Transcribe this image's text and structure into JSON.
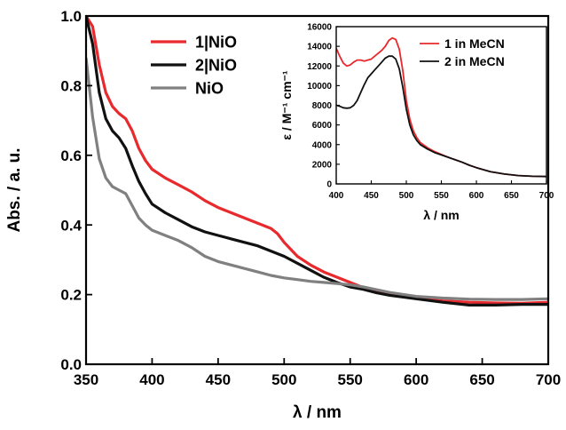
{
  "chart_data": [
    {
      "type": "line",
      "xlabel": "λ / nm",
      "ylabel": "Abs. / a. u.",
      "xlim": [
        350,
        700
      ],
      "ylim": [
        0.0,
        1.0
      ],
      "xticks": [
        350,
        400,
        450,
        500,
        550,
        600,
        650,
        700
      ],
      "yticks": [
        "0.0",
        "0.2",
        "0.4",
        "0.6",
        "0.8",
        "1.0"
      ],
      "legend_position": "top-center",
      "grid": false,
      "series": [
        {
          "name": "1|NiO",
          "color": "#e8292d",
          "points": [
            [
              350,
              1.0
            ],
            [
              355,
              0.97
            ],
            [
              360,
              0.86
            ],
            [
              365,
              0.78
            ],
            [
              370,
              0.74
            ],
            [
              375,
              0.72
            ],
            [
              380,
              0.705
            ],
            [
              385,
              0.67
            ],
            [
              390,
              0.62
            ],
            [
              395,
              0.585
            ],
            [
              400,
              0.56
            ],
            [
              410,
              0.535
            ],
            [
              420,
              0.515
            ],
            [
              430,
              0.495
            ],
            [
              440,
              0.47
            ],
            [
              450,
              0.45
            ],
            [
              460,
              0.435
            ],
            [
              470,
              0.42
            ],
            [
              480,
              0.405
            ],
            [
              490,
              0.39
            ],
            [
              495,
              0.375
            ],
            [
              500,
              0.35
            ],
            [
              510,
              0.31
            ],
            [
              520,
              0.285
            ],
            [
              530,
              0.265
            ],
            [
              540,
              0.25
            ],
            [
              550,
              0.235
            ],
            [
              560,
              0.22
            ],
            [
              570,
              0.208
            ],
            [
              580,
              0.2
            ],
            [
              600,
              0.19
            ],
            [
              620,
              0.182
            ],
            [
              640,
              0.178
            ],
            [
              660,
              0.176
            ],
            [
              680,
              0.175
            ],
            [
              700,
              0.178
            ]
          ]
        },
        {
          "name": "2|NiO",
          "color": "#111111",
          "points": [
            [
              350,
              1.0
            ],
            [
              355,
              0.92
            ],
            [
              360,
              0.78
            ],
            [
              365,
              0.705
            ],
            [
              370,
              0.67
            ],
            [
              375,
              0.65
            ],
            [
              380,
              0.62
            ],
            [
              385,
              0.57
            ],
            [
              390,
              0.525
            ],
            [
              395,
              0.49
            ],
            [
              400,
              0.46
            ],
            [
              410,
              0.435
            ],
            [
              420,
              0.415
            ],
            [
              430,
              0.395
            ],
            [
              440,
              0.38
            ],
            [
              450,
              0.37
            ],
            [
              460,
              0.36
            ],
            [
              470,
              0.35
            ],
            [
              480,
              0.34
            ],
            [
              490,
              0.325
            ],
            [
              500,
              0.31
            ],
            [
              510,
              0.29
            ],
            [
              520,
              0.27
            ],
            [
              530,
              0.25
            ],
            [
              540,
              0.235
            ],
            [
              550,
              0.222
            ],
            [
              560,
              0.215
            ],
            [
              570,
              0.205
            ],
            [
              580,
              0.198
            ],
            [
              600,
              0.188
            ],
            [
              620,
              0.178
            ],
            [
              640,
              0.17
            ],
            [
              660,
              0.17
            ],
            [
              680,
              0.172
            ],
            [
              700,
              0.172
            ]
          ]
        },
        {
          "name": "NiO",
          "color": "#808080",
          "points": [
            [
              350,
              0.88
            ],
            [
              355,
              0.71
            ],
            [
              360,
              0.59
            ],
            [
              365,
              0.535
            ],
            [
              370,
              0.51
            ],
            [
              375,
              0.5
            ],
            [
              380,
              0.49
            ],
            [
              385,
              0.455
            ],
            [
              390,
              0.42
            ],
            [
              395,
              0.4
            ],
            [
              400,
              0.385
            ],
            [
              410,
              0.37
            ],
            [
              420,
              0.355
            ],
            [
              430,
              0.335
            ],
            [
              440,
              0.31
            ],
            [
              450,
              0.295
            ],
            [
              460,
              0.285
            ],
            [
              470,
              0.275
            ],
            [
              480,
              0.265
            ],
            [
              490,
              0.255
            ],
            [
              500,
              0.248
            ],
            [
              510,
              0.243
            ],
            [
              520,
              0.238
            ],
            [
              530,
              0.235
            ],
            [
              540,
              0.232
            ],
            [
              550,
              0.228
            ],
            [
              560,
              0.222
            ],
            [
              570,
              0.214
            ],
            [
              580,
              0.206
            ],
            [
              600,
              0.195
            ],
            [
              620,
              0.19
            ],
            [
              640,
              0.187
            ],
            [
              660,
              0.186
            ],
            [
              680,
              0.186
            ],
            [
              700,
              0.188
            ]
          ]
        }
      ]
    },
    {
      "type": "line",
      "xlabel": "λ / nm",
      "ylabel": "ε / M⁻¹ cm⁻¹",
      "xlim": [
        400,
        700
      ],
      "ylim": [
        0,
        16000
      ],
      "xticks": [
        400,
        450,
        500,
        550,
        600,
        650,
        700
      ],
      "yticks": [
        "0",
        "2000",
        "4000",
        "6000",
        "8000",
        "10000",
        "12000",
        "14000",
        "16000"
      ],
      "legend_position": "top-right",
      "grid": false,
      "series": [
        {
          "name": "1 in MeCN",
          "color": "#e8292d",
          "points": [
            [
              400,
              13800
            ],
            [
              405,
              13000
            ],
            [
              410,
              12300
            ],
            [
              415,
              12000
            ],
            [
              420,
              12100
            ],
            [
              425,
              12400
            ],
            [
              430,
              12600
            ],
            [
              435,
              12600
            ],
            [
              440,
              12500
            ],
            [
              445,
              12600
            ],
            [
              450,
              12700
            ],
            [
              455,
              13000
            ],
            [
              460,
              13300
            ],
            [
              465,
              13600
            ],
            [
              470,
              14000
            ],
            [
              475,
              14600
            ],
            [
              480,
              14850
            ],
            [
              485,
              14700
            ],
            [
              490,
              13700
            ],
            [
              495,
              11500
            ],
            [
              500,
              8500
            ],
            [
              505,
              6600
            ],
            [
              510,
              5400
            ],
            [
              515,
              4700
            ],
            [
              520,
              4200
            ],
            [
              530,
              3700
            ],
            [
              540,
              3300
            ],
            [
              550,
              3000
            ],
            [
              560,
              2700
            ],
            [
              570,
              2450
            ],
            [
              580,
              2200
            ],
            [
              590,
              1900
            ],
            [
              600,
              1650
            ],
            [
              620,
              1250
            ],
            [
              640,
              1000
            ],
            [
              660,
              850
            ],
            [
              680,
              780
            ],
            [
              700,
              750
            ]
          ]
        },
        {
          "name": "2 in MeCN",
          "color": "#111111",
          "points": [
            [
              400,
              8000
            ],
            [
              405,
              7900
            ],
            [
              410,
              7750
            ],
            [
              415,
              7700
            ],
            [
              420,
              7750
            ],
            [
              425,
              8000
            ],
            [
              430,
              8500
            ],
            [
              435,
              9300
            ],
            [
              440,
              10100
            ],
            [
              445,
              10800
            ],
            [
              450,
              11200
            ],
            [
              455,
              11600
            ],
            [
              460,
              12000
            ],
            [
              465,
              12400
            ],
            [
              470,
              12800
            ],
            [
              475,
              13000
            ],
            [
              480,
              13000
            ],
            [
              485,
              12700
            ],
            [
              490,
              11700
            ],
            [
              495,
              9800
            ],
            [
              500,
              7600
            ],
            [
              505,
              6000
            ],
            [
              510,
              5000
            ],
            [
              515,
              4400
            ],
            [
              520,
              4000
            ],
            [
              530,
              3550
            ],
            [
              540,
              3200
            ],
            [
              550,
              2950
            ],
            [
              560,
              2700
            ],
            [
              570,
              2450
            ],
            [
              580,
              2200
            ],
            [
              590,
              1900
            ],
            [
              600,
              1650
            ],
            [
              620,
              1250
            ],
            [
              640,
              1000
            ],
            [
              660,
              850
            ],
            [
              680,
              780
            ],
            [
              700,
              750
            ]
          ]
        }
      ]
    }
  ]
}
